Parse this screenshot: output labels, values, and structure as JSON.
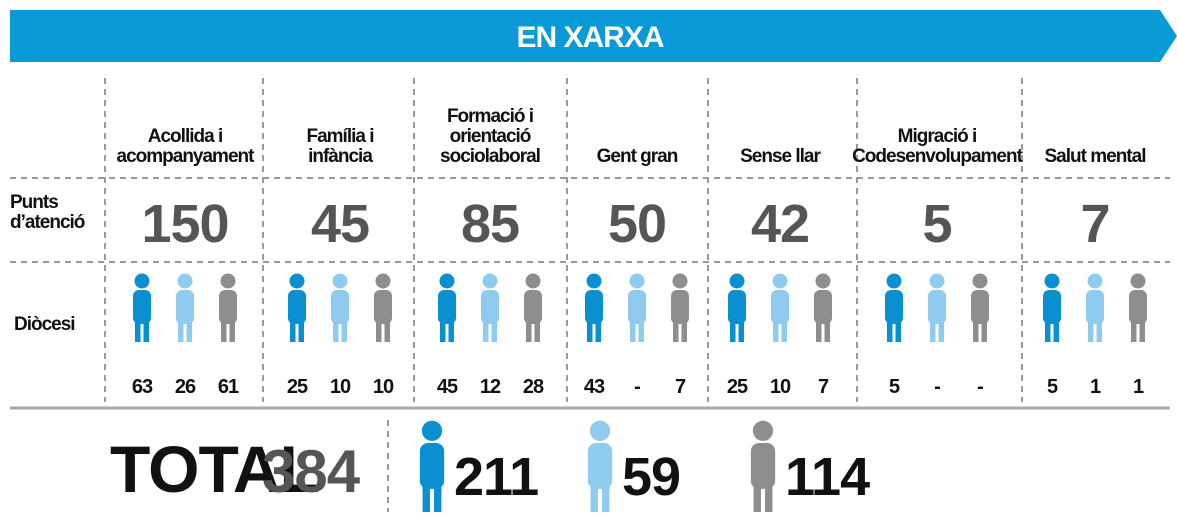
{
  "header": {
    "title": "EN XARXA"
  },
  "row_labels": {
    "points": [
      "Punts",
      "d’atenció"
    ],
    "diocese": [
      "Diòcesi"
    ]
  },
  "columns": [
    {
      "label": [
        "Acollida i",
        "acompanyament"
      ],
      "points": 150,
      "diocese": [
        63,
        26,
        61
      ]
    },
    {
      "label": [
        "Família i",
        "infància"
      ],
      "points": 45,
      "diocese": [
        25,
        10,
        10
      ]
    },
    {
      "label": [
        "Formació i",
        "orientació",
        "sociolaboral"
      ],
      "points": 85,
      "diocese": [
        45,
        12,
        28
      ]
    },
    {
      "label": [
        "Gent gran"
      ],
      "points": 50,
      "diocese": [
        43,
        "-",
        7
      ]
    },
    {
      "label": [
        "Sense llar"
      ],
      "points": 42,
      "diocese": [
        25,
        10,
        7
      ]
    },
    {
      "label": [
        "Migració i",
        "Codesenvolupament"
      ],
      "points": 5,
      "diocese": [
        5,
        "-",
        "-"
      ]
    },
    {
      "label": [
        "Salut mental"
      ],
      "points": 7,
      "diocese": [
        5,
        1,
        1
      ]
    }
  ],
  "total": {
    "label": "TOTAL",
    "value": 384,
    "diocese": [
      211,
      59,
      114
    ]
  }
}
